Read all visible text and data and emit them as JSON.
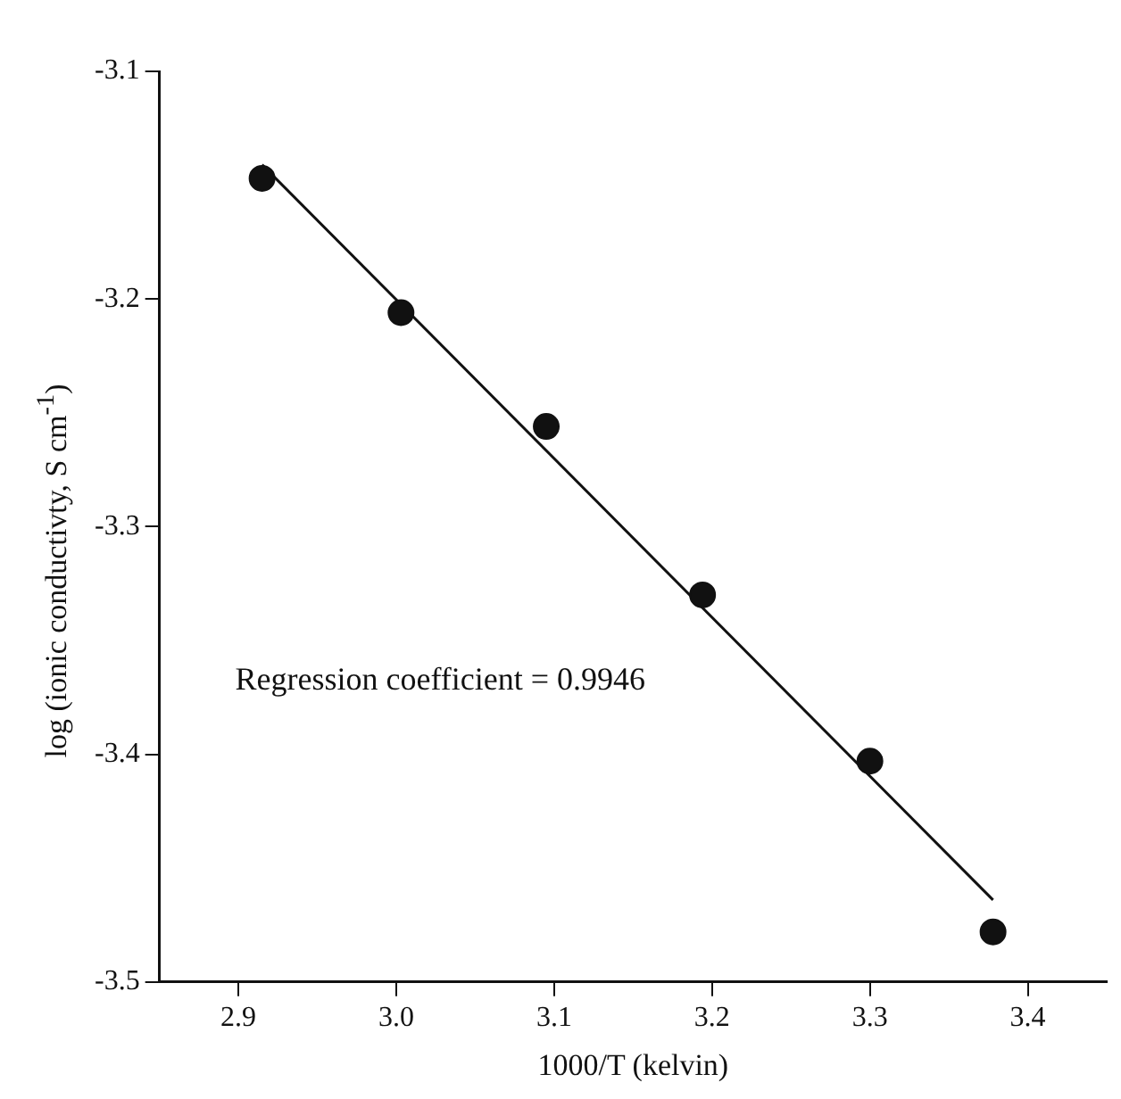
{
  "chart_data": {
    "type": "scatter",
    "xlabel": "1000/T (kelvin)",
    "ylabel": "log (ionic conductivty, S cm$^{-1}$)",
    "annotations": [
      "Regression coefficient = 0.9946"
    ],
    "series": [
      {
        "color": "#111111",
        "x": [
          2.915,
          3.003,
          3.095,
          3.194,
          3.3,
          3.378
        ],
        "values": [
          -3.147,
          -3.206,
          -3.256,
          -3.33,
          -3.403,
          -3.478
        ],
        "marker": "circle"
      },
      {
        "type": "line",
        "color": "#111111",
        "x": [
          2.915,
          3.378
        ],
        "values": [
          -3.141,
          -3.464
        ],
        "marker": "none",
        "line_style": "solid"
      }
    ],
    "xlim": [
      2.85,
      3.45
    ],
    "xticks": [
      2.9,
      {
        "value": 3,
        "label": "3.0"
      },
      3.1,
      3.2,
      3.3,
      3.4
    ],
    "ylim": [
      -3.5,
      -3.1
    ],
    "yticks": [
      -3.5,
      -3.4,
      -3.3,
      -3.2,
      -3.1
    ],
    "grid": false,
    "legend": false
  }
}
